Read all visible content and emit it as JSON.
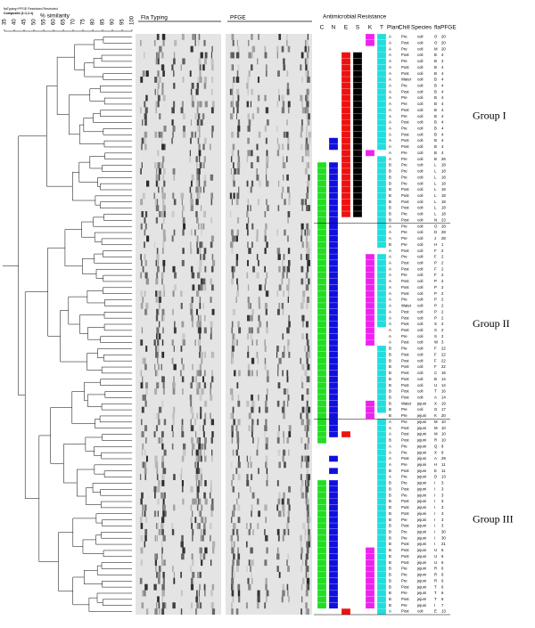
{
  "header": {
    "file_note": "flaTyping+PFGE Restricted Restricted",
    "composite": "Composite (1:1,1:1)",
    "similarity_label": "% similarity",
    "similarity_ticks": [
      35,
      40,
      45,
      50,
      55,
      60,
      65,
      70,
      75,
      80,
      85,
      90,
      95,
      100
    ],
    "fla_typing": "Fla Typing",
    "pfge_gel": "PFGE",
    "resistance": "Antimicrobial Resistance",
    "resistance_columns": [
      "C",
      "N",
      "E",
      "S",
      "K",
      "T"
    ],
    "resistance_colors": {
      "C": "#22dd22",
      "N": "#1010dd",
      "E": "#ee1111",
      "S": "#000000",
      "K": "#ee22ee",
      "T": "#22dddd"
    },
    "table_columns": [
      "Plant",
      "Chill",
      "Species",
      "fla",
      "PFGE"
    ]
  },
  "groups": [
    "Group I",
    "Group II",
    "Group III"
  ],
  "rows": [
    [
      "A",
      "Pre",
      "coli",
      "O",
      "20",
      "KT"
    ],
    [
      "A",
      "Post",
      "coli",
      "O",
      "20",
      "KT"
    ],
    [
      "A",
      "Pre",
      "coli",
      "M",
      "20",
      "T"
    ],
    [
      "A",
      "Post",
      "coli",
      "B",
      "4",
      "EST"
    ],
    [
      "A",
      "Pre",
      "coli",
      "B",
      "4",
      "EST"
    ],
    [
      "A",
      "Post",
      "coli",
      "B",
      "4",
      "EST"
    ],
    [
      "A",
      "Post",
      "coli",
      "B",
      "4",
      "EST"
    ],
    [
      "A",
      "Water",
      "coli",
      "B",
      "4",
      "EST"
    ],
    [
      "A",
      "Pre",
      "coli",
      "B",
      "4",
      "EST"
    ],
    [
      "A",
      "Post",
      "coli",
      "B",
      "4",
      "EST"
    ],
    [
      "A",
      "Pre",
      "coli",
      "B",
      "4",
      "EST"
    ],
    [
      "A",
      "Pre",
      "coli",
      "B",
      "4",
      "EST"
    ],
    [
      "A",
      "Post",
      "coli",
      "B",
      "4",
      "EST"
    ],
    [
      "A",
      "Pre",
      "coli",
      "B",
      "4",
      "EST"
    ],
    [
      "A",
      "Post",
      "coli",
      "B",
      "4",
      "EST"
    ],
    [
      "A",
      "Pre",
      "coli",
      "B",
      "4",
      "EST"
    ],
    [
      "A",
      "Post",
      "coli",
      "B",
      "4",
      "EST"
    ],
    [
      "A",
      "Post",
      "coli",
      "B",
      "4",
      "NEST"
    ],
    [
      "A",
      "Post",
      "coli",
      "B",
      "4",
      "NEST"
    ],
    [
      "A",
      "Pre",
      "coli",
      "B",
      "4",
      "ESK"
    ],
    [
      "A",
      "Pre",
      "coli",
      "B",
      "26",
      "EST"
    ],
    [
      "B",
      "Pre",
      "coli",
      "L",
      "18",
      "CNEST"
    ],
    [
      "B",
      "Pre",
      "coli",
      "L",
      "18",
      "CNEST"
    ],
    [
      "B",
      "Pre",
      "coli",
      "L",
      "18",
      "CNEST"
    ],
    [
      "B",
      "Pre",
      "coli",
      "L",
      "18",
      "CNEST"
    ],
    [
      "B",
      "Post",
      "coli",
      "L",
      "18",
      "CNEST"
    ],
    [
      "B",
      "Post",
      "coli",
      "L",
      "18",
      "CNEST"
    ],
    [
      "B",
      "Post",
      "coli",
      "L",
      "18",
      "CNEST"
    ],
    [
      "B",
      "Post",
      "coli",
      "L",
      "18",
      "CNEST"
    ],
    [
      "B",
      "Pre",
      "coli",
      "L",
      "18",
      "CNEST"
    ],
    [
      "B",
      "Post",
      "coli",
      "N",
      "23",
      "CNT"
    ],
    [
      "A",
      "Pre",
      "coli",
      "O",
      "28",
      "CNT"
    ],
    [
      "A",
      "Pre",
      "coli",
      "D",
      "28",
      "CNT"
    ],
    [
      "A",
      "Pre",
      "coli",
      "J",
      "28",
      "CNT"
    ],
    [
      "B",
      "Pre",
      "coli",
      "H",
      "1",
      "CNT"
    ],
    [
      "A",
      "Post",
      "coli",
      "F",
      "2",
      "CN"
    ],
    [
      "A",
      "Pre",
      "coli",
      "F",
      "2",
      "CNKT"
    ],
    [
      "A",
      "Post",
      "coli",
      "P",
      "2",
      "CNKT"
    ],
    [
      "A",
      "Post",
      "coli",
      "F",
      "2",
      "CNKT"
    ],
    [
      "A",
      "Pre",
      "coli",
      "F",
      "2",
      "CNKT"
    ],
    [
      "A",
      "Post",
      "coli",
      "P",
      "2",
      "CNKT"
    ],
    [
      "A",
      "Post",
      "coli",
      "P",
      "2",
      "CNKT"
    ],
    [
      "A",
      "Post",
      "coli",
      "P",
      "2",
      "CNKT"
    ],
    [
      "A",
      "Pre",
      "coli",
      "P",
      "2",
      "CNKT"
    ],
    [
      "A",
      "Water",
      "coli",
      "P",
      "2",
      "CNKT"
    ],
    [
      "A",
      "Post",
      "coli",
      "P",
      "2",
      "CNKT"
    ],
    [
      "A",
      "Post",
      "coli",
      "P",
      "2",
      "CNKT"
    ],
    [
      "A",
      "Post",
      "coli",
      "S",
      "2",
      "CNKT"
    ],
    [
      "A",
      "Post",
      "coli",
      "S",
      "2",
      "CNK"
    ],
    [
      "A",
      "Pre",
      "coli",
      "S",
      "2",
      "CNK"
    ],
    [
      "A",
      "Post",
      "coli",
      "W",
      "3",
      "CNK"
    ],
    [
      "B",
      "Pre",
      "coli",
      "F",
      "22",
      "CNT"
    ],
    [
      "B",
      "Post",
      "coli",
      "F",
      "22",
      "CNT"
    ],
    [
      "B",
      "Post",
      "coli",
      "F",
      "22",
      "CNT"
    ],
    [
      "B",
      "Post",
      "coli",
      "F",
      "22",
      "CNT"
    ],
    [
      "B",
      "Post",
      "coli",
      "C",
      "16",
      "CNT"
    ],
    [
      "B",
      "Post",
      "coli",
      "B",
      "14",
      "CNT"
    ],
    [
      "B",
      "Post",
      "coli",
      "U",
      "14",
      "CNT"
    ],
    [
      "B",
      "Post",
      "coli",
      "T",
      "16",
      "CNT"
    ],
    [
      "B",
      "Post",
      "coli",
      "A",
      "14",
      "CNT"
    ],
    [
      "B",
      "Water",
      "jejuni",
      "X",
      "19",
      "CNKT"
    ],
    [
      "B",
      "Pre",
      "coli",
      "G",
      "17",
      "CNKT"
    ],
    [
      "B",
      "Pre",
      "jejuni",
      "K",
      "20",
      "CNK"
    ],
    [
      "A",
      "Pre",
      "jejuni",
      "M",
      "10",
      "CNT"
    ],
    [
      "A",
      "Post",
      "jejuni",
      "M",
      "10",
      "CNT"
    ],
    [
      "A",
      "Post",
      "jejuni",
      "M",
      "10",
      "CNET"
    ],
    [
      "B",
      "Post",
      "jejuni",
      "R",
      "10",
      "CT"
    ],
    [
      "A",
      "Pre",
      "jejuni",
      "Q",
      "8",
      "T"
    ],
    [
      "A",
      "Pre",
      "jejuni",
      "X",
      "8",
      "T"
    ],
    [
      "A",
      "Post",
      "jejuni",
      "A",
      "29",
      "NT"
    ],
    [
      "A",
      "Pre",
      "jejuni",
      "H",
      "11",
      "T"
    ],
    [
      "B",
      "Post",
      "jejuni",
      "E",
      "11",
      "NT"
    ],
    [
      "A",
      "Pre",
      "jejuni",
      "D",
      "13",
      "T"
    ],
    [
      "B",
      "Pre",
      "jejuni",
      "I",
      "3",
      "CNT"
    ],
    [
      "B",
      "Post",
      "jejuni",
      "I",
      "3",
      "CNT"
    ],
    [
      "B",
      "Pre",
      "jejuni",
      "I",
      "3",
      "CNT"
    ],
    [
      "B",
      "Post",
      "jejuni",
      "I",
      "3",
      "CNT"
    ],
    [
      "B",
      "Post",
      "jejuni",
      "I",
      "3",
      "CNT"
    ],
    [
      "B",
      "Post",
      "jejuni",
      "I",
      "3",
      "CNT"
    ],
    [
      "B",
      "Pre",
      "jejuni",
      "I",
      "3",
      "CNT"
    ],
    [
      "B",
      "Post",
      "jejuni",
      "I",
      "3",
      "CNT"
    ],
    [
      "B",
      "Pre",
      "jejuni",
      "I",
      "30",
      "CNT"
    ],
    [
      "B",
      "Pre",
      "jejuni",
      "I",
      "30",
      "CNT"
    ],
    [
      "B",
      "Post",
      "jejuni",
      "I",
      "21",
      "CNT"
    ],
    [
      "B",
      "Post",
      "jejuni",
      "U",
      "6",
      "CNKT"
    ],
    [
      "B",
      "Post",
      "jejuni",
      "U",
      "6",
      "CNKT"
    ],
    [
      "B",
      "Post",
      "jejuni",
      "U",
      "6",
      "CNKT"
    ],
    [
      "B",
      "Pre",
      "jejuni",
      "R",
      "6",
      "CNKT"
    ],
    [
      "B",
      "Pre",
      "jejuni",
      "R",
      "6",
      "CNKT"
    ],
    [
      "B",
      "Pre",
      "jejuni",
      "R",
      "6",
      "CNKT"
    ],
    [
      "B",
      "Post",
      "jejuni",
      "T",
      "6",
      "CNKT"
    ],
    [
      "B",
      "Pre",
      "jejuni",
      "T",
      "6",
      "CNKT"
    ],
    [
      "B",
      "Post",
      "jejuni",
      "T",
      "6",
      "CNKT"
    ],
    [
      "B",
      "Pre",
      "jejuni",
      "I",
      "7",
      "CNKT"
    ],
    [
      "A",
      "Post",
      "coli",
      "E",
      "13",
      "ET"
    ]
  ]
}
